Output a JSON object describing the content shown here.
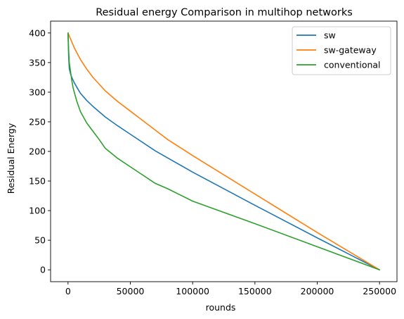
{
  "chart_data": {
    "type": "line",
    "title": "Residual energy Comparison in multihop networks",
    "xlabel": "rounds",
    "ylabel": "Residual Energy",
    "xlim": [
      -14000,
      264000
    ],
    "ylim": [
      -20,
      420
    ],
    "xticks": [
      0,
      50000,
      100000,
      150000,
      200000,
      250000
    ],
    "yticks": [
      0,
      50,
      100,
      150,
      200,
      250,
      300,
      350,
      400
    ],
    "grid": false,
    "legend_position": "top-right",
    "series": [
      {
        "name": "sw",
        "color": "#1f77b4",
        "x": [
          0,
          500,
          1000,
          2000,
          3000,
          5000,
          8000,
          10000,
          15000,
          20000,
          30000,
          40000,
          50000,
          70000,
          100000,
          150000,
          200000,
          250000
        ],
        "y": [
          400,
          360,
          340,
          331,
          325,
          316,
          305,
          298,
          286,
          276,
          258,
          243,
          229,
          201,
          165,
          109,
          54,
          0
        ]
      },
      {
        "name": "sw-gateway",
        "color": "#ff7f0e",
        "x": [
          0,
          2000,
          5000,
          10000,
          15000,
          20000,
          30000,
          40000,
          50000,
          60000,
          70000,
          80000,
          100000,
          150000,
          200000,
          250000
        ],
        "y": [
          400,
          390,
          375,
          355,
          339,
          325,
          302,
          284,
          268,
          252,
          236,
          220,
          193,
          128,
          63,
          0
        ]
      },
      {
        "name": "conventional",
        "color": "#2ca02c",
        "x": [
          0,
          500,
          1000,
          2000,
          3000,
          4000,
          5000,
          7000,
          10000,
          15000,
          20000,
          25000,
          30000,
          40000,
          50000,
          60000,
          70000,
          80000,
          100000,
          150000,
          200000,
          250000
        ],
        "y": [
          400,
          370,
          350,
          335,
          320,
          308,
          300,
          285,
          267,
          248,
          234,
          220,
          205,
          188,
          174,
          160,
          146,
          137,
          116,
          78,
          39,
          0
        ]
      }
    ]
  }
}
